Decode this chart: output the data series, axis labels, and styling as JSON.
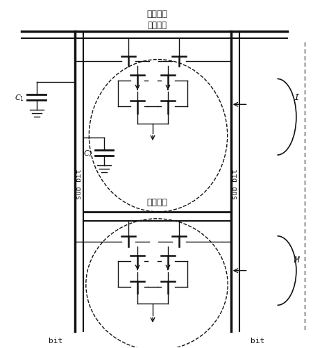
{
  "bg_color": "#ffffff",
  "line_color": "#1a1a1a",
  "label_quanbu": "全都字线",
  "label_jubu2": "局部字段",
  "label_jubu1": "局部字线",
  "label_sub_bit_left": "sub bit",
  "label_sub_bit_right": "sub bit",
  "label_bit_left": "bit",
  "label_bit_right": "bit",
  "label_C1": "C1",
  "label_C2": "C2",
  "label_I": "I",
  "label_M": "M"
}
